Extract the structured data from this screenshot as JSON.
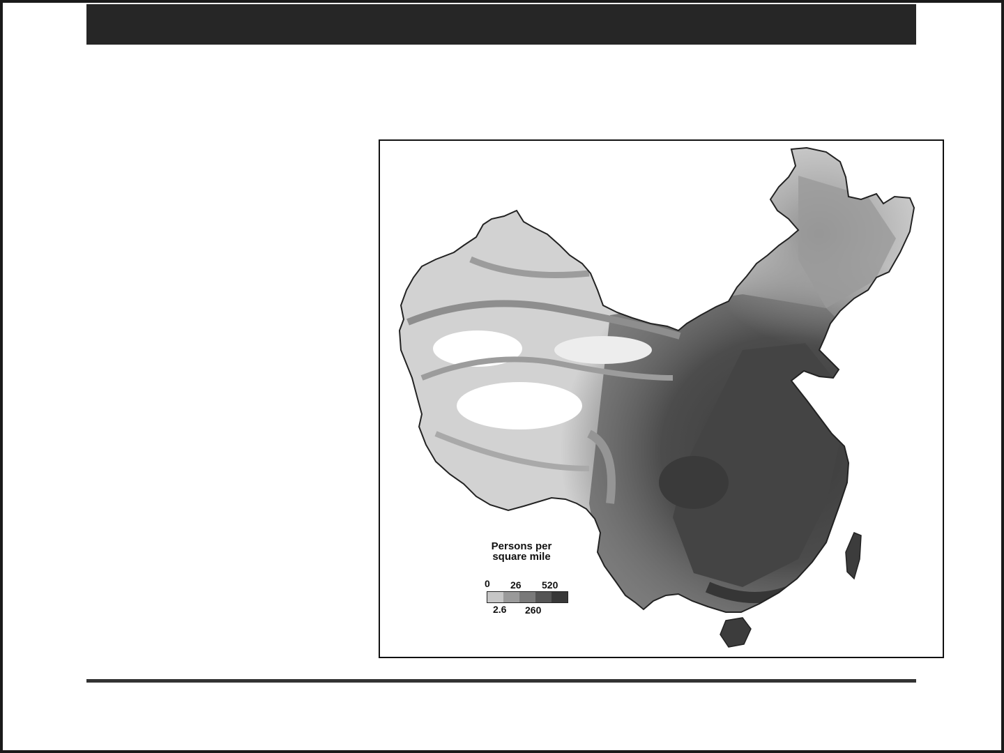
{
  "slide": {
    "header_bar_color": "#262626",
    "rule_color": "#333333"
  },
  "map": {
    "subject": "China population density",
    "legend": {
      "title_line1": "Persons per",
      "title_line2": "square mile",
      "top_ticks": [
        "0",
        "26",
        "520"
      ],
      "bottom_ticks": [
        "2.6",
        "260"
      ],
      "colors": [
        "#c6c6c6",
        "#9a9a9a",
        "#7a7a7a",
        "#555555",
        "#383838"
      ]
    }
  }
}
